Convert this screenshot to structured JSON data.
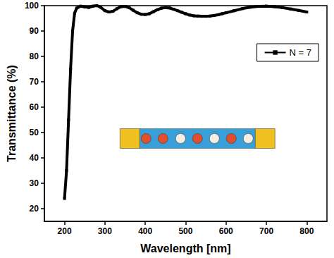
{
  "chart_data": {
    "type": "line",
    "x_label": "Wavelength [nm]",
    "y_label": "Transmittance (%)",
    "xlim": [
      150,
      850
    ],
    "xticks": [
      200,
      300,
      400,
      500,
      600,
      700,
      800
    ],
    "ylim": [
      15,
      100
    ],
    "yticks": [
      20,
      30,
      40,
      50,
      60,
      70,
      80,
      90,
      100
    ],
    "grid": false,
    "legend": "upper right",
    "series": [
      {
        "name": "N = 7",
        "color": "#000000",
        "marker": "square",
        "line_style": "solid",
        "x": [
          200,
          205,
          210,
          215,
          220,
          225,
          230,
          240,
          250,
          260,
          270,
          280,
          290,
          300,
          310,
          320,
          330,
          340,
          350,
          360,
          370,
          380,
          390,
          400,
          410,
          420,
          430,
          440,
          450,
          460,
          470,
          480,
          490,
          500,
          510,
          520,
          530,
          540,
          550,
          560,
          570,
          580,
          590,
          600,
          620,
          640,
          660,
          680,
          700,
          720,
          740,
          760,
          780,
          800
        ],
        "values": [
          24,
          35,
          55,
          75,
          90,
          97,
          99,
          99.8,
          99.5,
          99.3,
          99.8,
          100,
          99.3,
          98,
          97.5,
          97.8,
          98.8,
          99.6,
          99.7,
          99.2,
          98.2,
          97.2,
          96.6,
          96.5,
          96.8,
          97.6,
          98.4,
          99,
          99.2,
          99.1,
          98.6,
          98,
          97.4,
          96.8,
          96.3,
          96,
          95.9,
          95.8,
          95.8,
          95.9,
          96.1,
          96.4,
          96.8,
          97.2,
          98,
          98.8,
          99.4,
          99.7,
          99.8,
          99.6,
          99.2,
          98.7,
          98.1,
          97.5
        ]
      }
    ]
  }
}
